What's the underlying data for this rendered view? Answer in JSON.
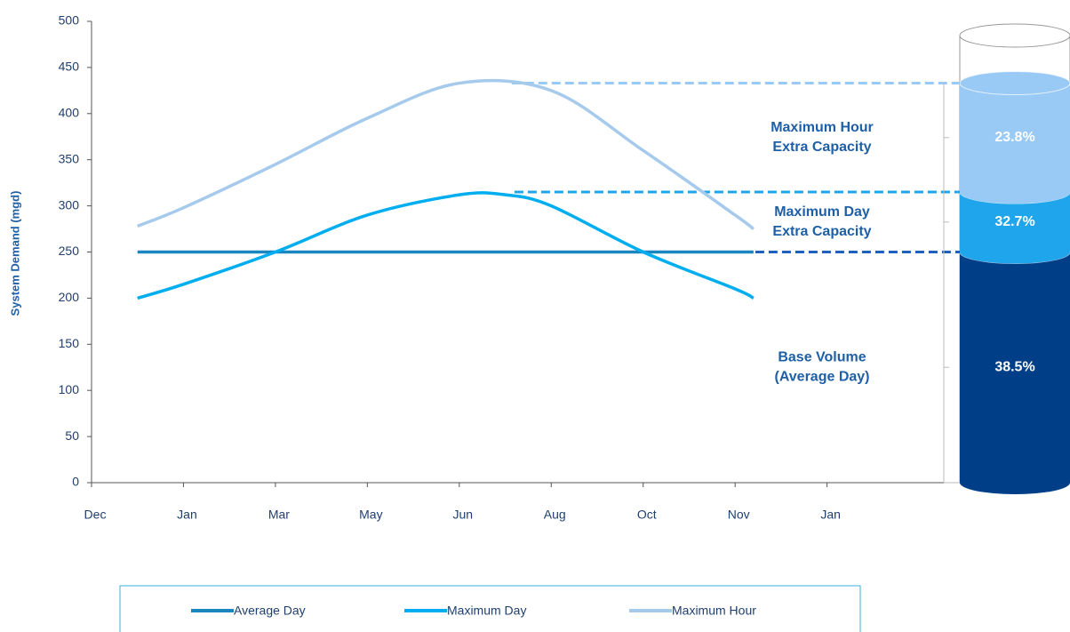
{
  "chart_data": {
    "type": "line",
    "y_label": "System Demand (mgd)",
    "xlim": [
      0,
      9.27
    ],
    "ylim": [
      0,
      500
    ],
    "xticks": [
      {
        "value": 0,
        "label": "Dec"
      },
      {
        "value": 1,
        "label": "Jan"
      },
      {
        "value": 2,
        "label": "Mar"
      },
      {
        "value": 3,
        "label": "May"
      },
      {
        "value": 4,
        "label": "Jun"
      },
      {
        "value": 5,
        "label": "Aug"
      },
      {
        "value": 6,
        "label": "Oct"
      },
      {
        "value": 7,
        "label": "Nov"
      },
      {
        "value": 8,
        "label": "Jan"
      }
    ],
    "yticks": [
      0,
      50,
      100,
      150,
      200,
      250,
      300,
      350,
      400,
      450,
      500
    ],
    "grid": false,
    "series": [
      {
        "name": "Average Day",
        "color": "#1a86c0",
        "x": [
          0.5,
          7.2
        ],
        "values": [
          250,
          250
        ]
      },
      {
        "name": "Maximum Day",
        "color": "#00aeef",
        "x": [
          0.5,
          1,
          2,
          3,
          4,
          4.5,
          5,
          6,
          7,
          7.2
        ],
        "values": [
          200,
          215,
          250,
          290,
          312,
          312,
          300,
          250,
          210,
          200
        ]
      },
      {
        "name": "Maximum Hour",
        "color": "#a6caec",
        "x": [
          0.5,
          1,
          2,
          3,
          4,
          5,
          6,
          7,
          7.2
        ],
        "values": [
          278,
          298,
          345,
          395,
          433,
          425,
          360,
          290,
          275
        ]
      }
    ],
    "cylinder": {
      "segments": [
        {
          "name": [
            "Base Volume",
            "(Average Day)"
          ],
          "value": 38.5,
          "value_label": "38.5%",
          "top": 250,
          "dash_from": 6.06,
          "color": "#003f87"
        },
        {
          "name": [
            "Maximum Day",
            "Extra Capacity"
          ],
          "value": 32.7,
          "value_label": "32.7%",
          "top": 315,
          "dash_from": 4.6,
          "color": "#1ea5ec"
        },
        {
          "name": [
            "Maximum Hour",
            "Extra Capacity"
          ],
          "value": 23.8,
          "value_label": "23.8%",
          "top": 433,
          "dash_from": 4.57,
          "color": "#99c9f5"
        }
      ]
    }
  }
}
